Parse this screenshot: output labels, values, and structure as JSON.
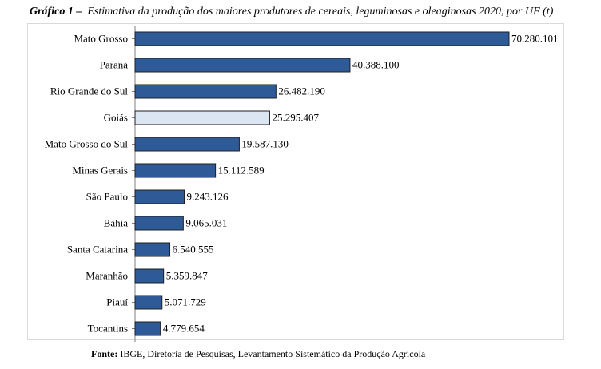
{
  "title": {
    "prefix": "Gráfico 1 –",
    "text": "Estimativa da produção dos maiores produtores de cereais, leguminosas e oleaginosas 2020, por UF (t)"
  },
  "source": {
    "prefix": "Fonte:",
    "text": "IBGE, Diretoria de Pesquisas, Levantamento Sistemático da Produção Agrícola"
  },
  "colors": {
    "bar": "#2e5b97",
    "highlight": "#dce6f2",
    "bar_stroke": "#1f1f1f"
  },
  "chart_data": {
    "type": "bar",
    "orientation": "horizontal",
    "categories": [
      "Mato Grosso",
      "Paraná",
      "Rio Grande do Sul",
      "Goiás",
      "Mato Grosso do Sul",
      "Minas Gerais",
      "São Paulo",
      "Bahia",
      "Santa Catarina",
      "Maranhão",
      "Piauí",
      "Tocantins"
    ],
    "values": [
      70280101,
      40388100,
      26482190,
      25295407,
      19587130,
      15112589,
      9243126,
      9065031,
      6540555,
      5359847,
      5071729,
      4779654
    ],
    "value_labels": [
      "70.280.101",
      "40.388.100",
      "26.482.190",
      "25.295.407",
      "19.587.130",
      "15.112.589",
      "9.243.126",
      "9.065.031",
      "6.540.555",
      "5.359.847",
      "5.071.729",
      "4.779.654"
    ],
    "highlighted_category": "Goiás",
    "xlim": [
      0,
      70280101
    ],
    "grid": false,
    "legend": "none"
  }
}
